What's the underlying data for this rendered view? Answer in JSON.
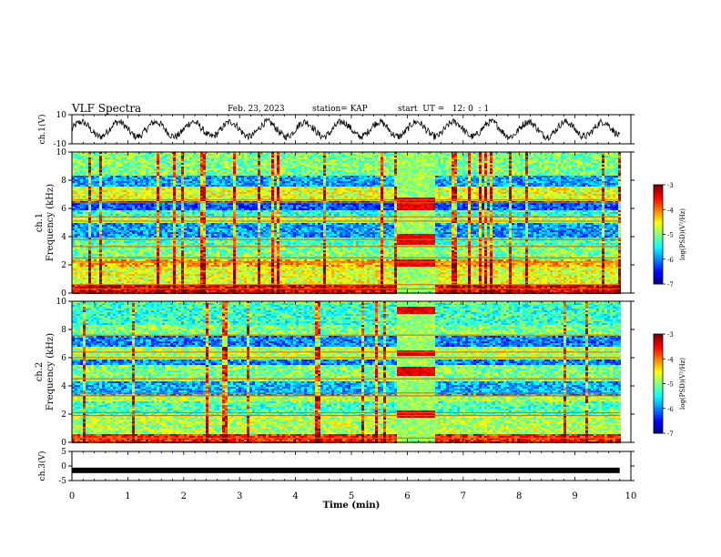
{
  "header": {
    "title": "VLF Spectra",
    "date": "Feb. 23, 2023",
    "station": "station= KAP",
    "start": "start  UT =   12: 0  : 1"
  },
  "chart_data": [
    {
      "type": "line",
      "panel": "ch1-waveform",
      "ylabel": "ch.1(V)",
      "ylim": [
        -10,
        10
      ],
      "yticks": [
        "10",
        "-10"
      ],
      "xlim": [
        0,
        10
      ],
      "description_values": {
        "amplitude_range": [
          -8,
          8
        ],
        "oscillation_count": 15
      }
    },
    {
      "type": "heatmap",
      "panel": "ch1-spectrogram",
      "ylabel": "ch.1 Frequency (kHz)",
      "ylim": [
        0,
        10
      ],
      "yticks": [
        "0",
        "2",
        "4",
        "6",
        "8",
        "10"
      ],
      "xlim": [
        0,
        10
      ],
      "colorbar": {
        "label": "log(PSD)(V²/Hz)",
        "range": [
          -7,
          -3
        ],
        "ticks": [
          "-3",
          "-4",
          "-5",
          "-6",
          "-7"
        ]
      },
      "bands": [
        {
          "range": [
            0,
            0.6
          ],
          "level": -3.4
        },
        {
          "range": [
            0.6,
            2.0
          ],
          "level": -4.6
        },
        {
          "range": [
            2.0,
            2.5
          ],
          "level": -4.2
        },
        {
          "range": [
            2.5,
            3.3
          ],
          "level": -5.0
        },
        {
          "range": [
            3.3,
            4.0
          ],
          "level": -5.2
        },
        {
          "range": [
            4.0,
            5.0
          ],
          "level": -5.9
        },
        {
          "range": [
            5.0,
            5.4
          ],
          "level": -4.8
        },
        {
          "range": [
            5.4,
            6.0
          ],
          "level": -5.3
        },
        {
          "range": [
            6.0,
            6.6
          ],
          "level": -6.2
        },
        {
          "range": [
            6.6,
            7.6
          ],
          "level": -4.6
        },
        {
          "range": [
            7.6,
            8.4
          ],
          "level": -5.9
        },
        {
          "range": [
            8.4,
            10
          ],
          "level": -5.0
        }
      ],
      "lines": [
        0.3,
        0.6,
        2.2,
        2.5,
        3.3,
        3.8,
        5.1,
        5.4,
        6.4,
        6.6
      ],
      "burst": {
        "x": [
          5.8,
          6.45
        ],
        "ranges": [
          [
            2.0,
            2.5
          ],
          [
            3.5,
            4.2
          ],
          [
            6.0,
            6.8
          ]
        ]
      }
    },
    {
      "type": "heatmap",
      "panel": "ch2-spectrogram",
      "ylabel": "ch.2 Frequency (kHz)",
      "ylim": [
        0,
        10
      ],
      "yticks": [
        "0",
        "2",
        "4",
        "6",
        "8",
        "10"
      ],
      "xlim": [
        0,
        10
      ],
      "colorbar": {
        "label": "log(PSD)(V²/Hz)",
        "range": [
          -7,
          -3
        ],
        "ticks": [
          "-3",
          "-4",
          "-5",
          "-6",
          "-7"
        ]
      },
      "bands": [
        {
          "range": [
            0,
            0.6
          ],
          "level": -3.6
        },
        {
          "range": [
            0.6,
            2.0
          ],
          "level": -4.8
        },
        {
          "range": [
            2.0,
            3.0
          ],
          "level": -5.2
        },
        {
          "range": [
            3.0,
            3.4
          ],
          "level": -4.8
        },
        {
          "range": [
            3.4,
            4.4
          ],
          "level": -5.8
        },
        {
          "range": [
            4.4,
            5.6
          ],
          "level": -5.0
        },
        {
          "range": [
            5.6,
            6.0
          ],
          "level": -6.0
        },
        {
          "range": [
            6.0,
            6.8
          ],
          "level": -4.8
        },
        {
          "range": [
            6.8,
            7.6
          ],
          "level": -6.0
        },
        {
          "range": [
            7.6,
            8.4
          ],
          "level": -5.0
        },
        {
          "range": [
            8.4,
            10
          ],
          "level": -5.3
        }
      ],
      "lines": [
        0.3,
        1.9,
        2.1,
        3.3,
        3.5,
        4.5,
        6.0,
        6.4,
        7.6
      ],
      "burst": {
        "x": [
          5.8,
          6.45
        ],
        "ranges": [
          [
            1.8,
            2.3
          ],
          [
            4.8,
            5.4
          ],
          [
            6.2,
            6.6
          ],
          [
            9.1,
            9.7
          ]
        ]
      }
    },
    {
      "type": "line",
      "panel": "ch3-trace",
      "ylabel": "ch.3(V)",
      "ylim": [
        -5,
        5
      ],
      "yticks": [
        "5",
        "0",
        "-5"
      ],
      "xlim": [
        0,
        10
      ],
      "xlabel": "Time  (min)",
      "xticks": [
        "0",
        "1",
        "2",
        "3",
        "4",
        "5",
        "6",
        "7",
        "8",
        "9",
        "10"
      ],
      "series": [
        {
          "values_x": [
            0,
            9.8
          ],
          "values_y": [
            -1.5,
            -1.5
          ]
        }
      ]
    }
  ]
}
